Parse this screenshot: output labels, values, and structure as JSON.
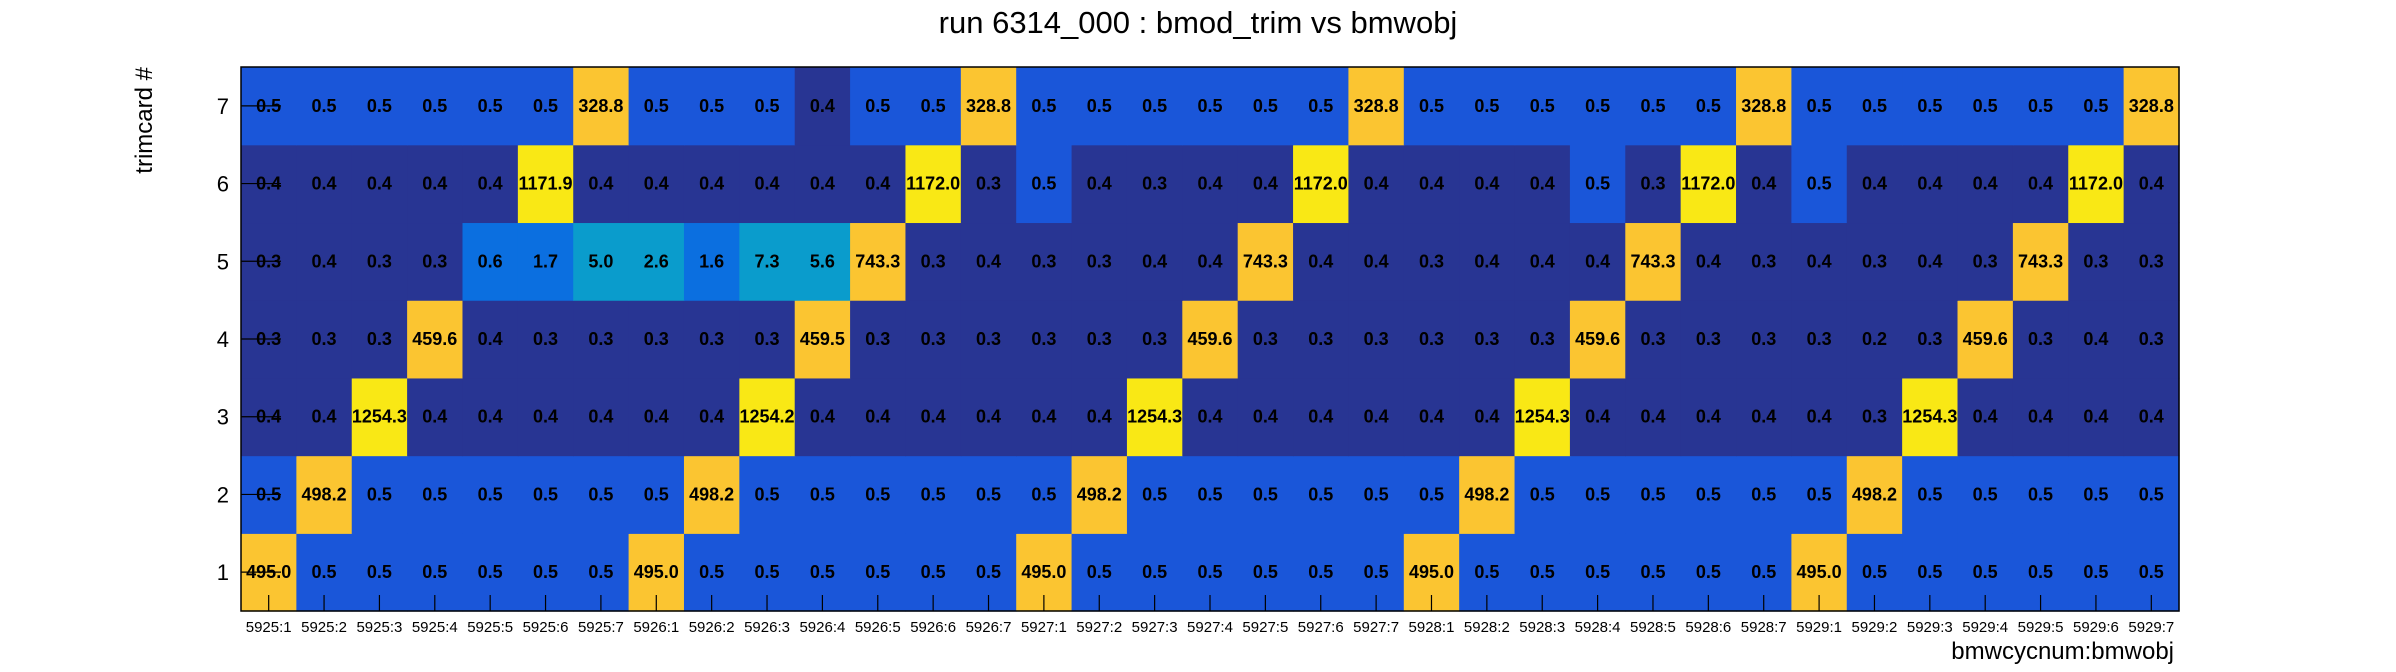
{
  "chart_data": {
    "type": "heatmap",
    "title": "run 6314_000 : bmod_trim vs bmwobj",
    "xlabel": "bmwcycnum:bmwobj",
    "ylabel": "trimcard #",
    "x_categories": [
      "5925:1",
      "5925:2",
      "5925:3",
      "5925:4",
      "5925:5",
      "5925:6",
      "5925:7",
      "5926:1",
      "5926:2",
      "5926:3",
      "5926:4",
      "5926:5",
      "5926:6",
      "5926:7",
      "5927:1",
      "5927:2",
      "5927:3",
      "5927:4",
      "5927:5",
      "5927:6",
      "5927:7",
      "5928:1",
      "5928:2",
      "5928:3",
      "5928:4",
      "5928:5",
      "5928:6",
      "5928:7",
      "5929:1",
      "5929:2",
      "5929:3",
      "5929:4",
      "5929:5",
      "5929:6",
      "5929:7"
    ],
    "y_categories": [
      "1",
      "2",
      "3",
      "4",
      "5",
      "6",
      "7"
    ],
    "values": {
      "7": [
        "0.5",
        "0.5",
        "0.5",
        "0.5",
        "0.5",
        "0.5",
        "328.8",
        "0.5",
        "0.5",
        "0.5",
        "0.4",
        "0.5",
        "0.5",
        "328.8",
        "0.5",
        "0.5",
        "0.5",
        "0.5",
        "0.5",
        "0.5",
        "328.8",
        "0.5",
        "0.5",
        "0.5",
        "0.5",
        "0.5",
        "0.5",
        "328.8",
        "0.5",
        "0.5",
        "0.5",
        "0.5",
        "0.5",
        "0.5",
        "328.8"
      ],
      "6": [
        "0.4",
        "0.4",
        "0.4",
        "0.4",
        "0.4",
        "1171.9",
        "0.4",
        "0.4",
        "0.4",
        "0.4",
        "0.4",
        "0.4",
        "1172.0",
        "0.3",
        "0.5",
        "0.4",
        "0.3",
        "0.4",
        "0.4",
        "1172.0",
        "0.4",
        "0.4",
        "0.4",
        "0.4",
        "0.5",
        "0.3",
        "1172.0",
        "0.4",
        "0.5",
        "0.4",
        "0.4",
        "0.4",
        "0.4",
        "1172.0",
        "0.4"
      ],
      "5": [
        "0.3",
        "0.4",
        "0.3",
        "0.3",
        "0.6",
        "1.7",
        "5.0",
        "2.6",
        "1.6",
        "7.3",
        "5.6",
        "743.3",
        "0.3",
        "0.4",
        "0.3",
        "0.3",
        "0.4",
        "0.4",
        "743.3",
        "0.4",
        "0.4",
        "0.3",
        "0.4",
        "0.4",
        "0.4",
        "743.3",
        "0.4",
        "0.3",
        "0.4",
        "0.3",
        "0.4",
        "0.3",
        "743.3",
        "0.3",
        "0.3"
      ],
      "4": [
        "0.3",
        "0.3",
        "0.3",
        "459.6",
        "0.4",
        "0.3",
        "0.3",
        "0.3",
        "0.3",
        "0.3",
        "459.5",
        "0.3",
        "0.3",
        "0.3",
        "0.3",
        "0.3",
        "0.3",
        "459.6",
        "0.3",
        "0.3",
        "0.3",
        "0.3",
        "0.3",
        "0.3",
        "459.6",
        "0.3",
        "0.3",
        "0.3",
        "0.3",
        "0.2",
        "0.3",
        "459.6",
        "0.3",
        "0.4",
        "0.3"
      ],
      "3": [
        "0.4",
        "0.4",
        "1254.3",
        "0.4",
        "0.4",
        "0.4",
        "0.4",
        "0.4",
        "0.4",
        "1254.2",
        "0.4",
        "0.4",
        "0.4",
        "0.4",
        "0.4",
        "0.4",
        "1254.3",
        "0.4",
        "0.4",
        "0.4",
        "0.4",
        "0.4",
        "0.4",
        "1254.3",
        "0.4",
        "0.4",
        "0.4",
        "0.4",
        "0.4",
        "0.3",
        "1254.3",
        "0.4",
        "0.4",
        "0.4",
        "0.4"
      ],
      "2": [
        "0.5",
        "498.2",
        "0.5",
        "0.5",
        "0.5",
        "0.5",
        "0.5",
        "0.5",
        "498.2",
        "0.5",
        "0.5",
        "0.5",
        "0.5",
        "0.5",
        "0.5",
        "498.2",
        "0.5",
        "0.5",
        "0.5",
        "0.5",
        "0.5",
        "0.5",
        "498.2",
        "0.5",
        "0.5",
        "0.5",
        "0.5",
        "0.5",
        "0.5",
        "498.2",
        "0.5",
        "0.5",
        "0.5",
        "0.5",
        "0.5"
      ],
      "1": [
        "495.0",
        "0.5",
        "0.5",
        "0.5",
        "0.5",
        "0.5",
        "0.5",
        "495.0",
        "0.5",
        "0.5",
        "0.5",
        "0.5",
        "0.5",
        "0.5",
        "495.0",
        "0.5",
        "0.5",
        "0.5",
        "0.5",
        "0.5",
        "0.5",
        "495.0",
        "0.5",
        "0.5",
        "0.5",
        "0.5",
        "0.5",
        "0.5",
        "495.0",
        "0.5",
        "0.5",
        "0.5",
        "0.5",
        "0.5",
        "0.5"
      ]
    },
    "colors": {
      "very_low": "#283593",
      "low": "#1a56d9",
      "mid_low": "#0b6fe0",
      "mid": "#0a9ccc",
      "high": "#fbc531",
      "highest": "#f9e815"
    },
    "grid": false,
    "legend": "none"
  }
}
